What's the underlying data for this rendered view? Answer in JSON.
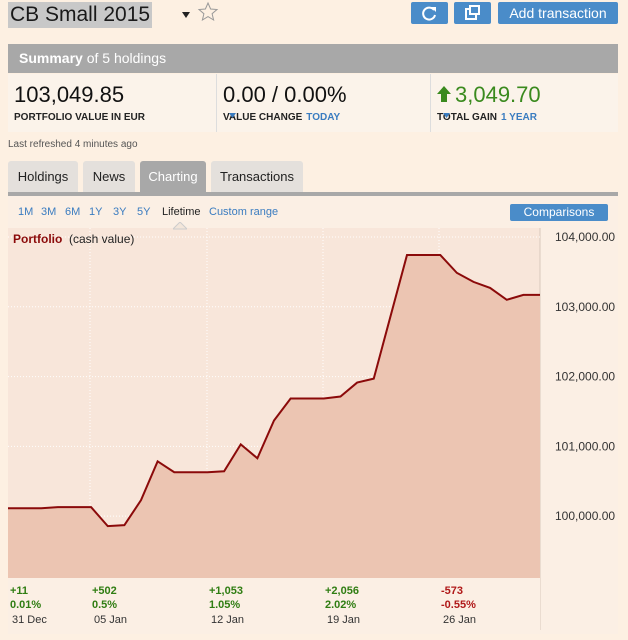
{
  "header": {
    "title": "CB Small 2015",
    "add_button": "Add transaction"
  },
  "summary": {
    "label": "Summary",
    "detail": "of 5 holdings"
  },
  "stats": [
    {
      "value": "103,049.85",
      "label": "PORTFOLIO VALUE IN EUR"
    },
    {
      "value": "0.00 / 0.00%",
      "label": "VALUE CHANGE",
      "period": "TODAY"
    },
    {
      "value": "3,049.70",
      "label": "TOTAL GAIN",
      "period": "1 YEAR",
      "color": "#3a8a1e"
    }
  ],
  "refreshed": "Last refreshed 4 minutes ago",
  "tabs": [
    "Holdings",
    "News",
    "Charting",
    "Transactions"
  ],
  "active_tab": 2,
  "ranges": [
    "1M",
    "3M",
    "6M",
    "1Y",
    "3Y",
    "5Y",
    "Lifetime",
    "Custom range"
  ],
  "active_range": 6,
  "comparisons": "Comparisons",
  "chart": {
    "type": "line",
    "title": "Portfolio",
    "subtitle": "(cash value)",
    "x": [
      0,
      2,
      3,
      5,
      6,
      7,
      8,
      9,
      10,
      12,
      13,
      14,
      15,
      16,
      17,
      19,
      20,
      21,
      22,
      24,
      26,
      27,
      28,
      29,
      30,
      31,
      32
    ],
    "values": [
      100114,
      100114,
      100129,
      100129,
      99857,
      99871,
      100229,
      100786,
      100629,
      100629,
      100643,
      101029,
      100829,
      101371,
      101686,
      101686,
      101714,
      101914,
      101971,
      103743,
      103743,
      103486,
      103357,
      103271,
      103100,
      103171,
      103171
    ],
    "xlim": [
      0,
      32
    ],
    "ylim": [
      99114,
      104129
    ],
    "yticks": [
      {
        "value": 100000,
        "label": "100,000.00"
      },
      {
        "value": 101000,
        "label": "101,000.00"
      },
      {
        "value": 102000,
        "label": "102,000.00"
      },
      {
        "value": 103000,
        "label": "103,000.00"
      },
      {
        "value": 104000,
        "label": "104,000.00"
      }
    ],
    "color": "#8b0a0a",
    "fill": "#ecc5b2",
    "grid": true
  },
  "weeks": [
    {
      "change": "+11",
      "percent": "0.01%",
      "date": "31 Dec",
      "color": "#2f7d12"
    },
    {
      "change": "+502",
      "percent": "0.5%",
      "date": "05 Jan",
      "color": "#2f7d12"
    },
    {
      "change": "+1,053",
      "percent": "1.05%",
      "date": "12 Jan",
      "color": "#2f7d12"
    },
    {
      "change": "+2,056",
      "percent": "2.02%",
      "date": "19 Jan",
      "color": "#2f7d12"
    },
    {
      "change": "-573",
      "percent": "-0.55%",
      "date": "26 Jan",
      "color": "#b01818"
    }
  ]
}
